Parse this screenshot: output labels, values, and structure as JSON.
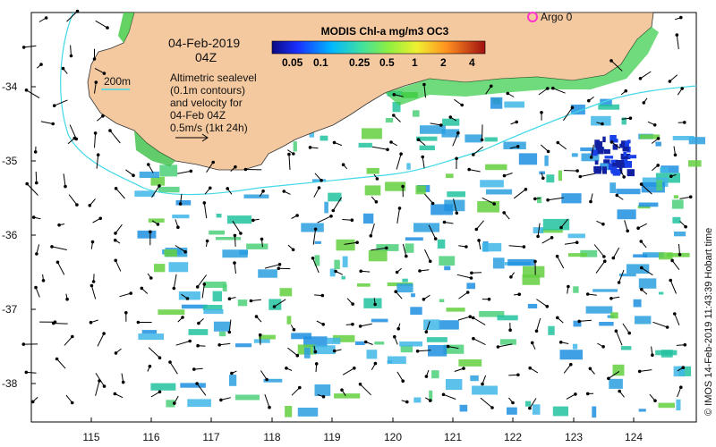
{
  "map": {
    "date_line1": "04-Feb-2019",
    "date_line2": "04Z",
    "contour_label": "200m",
    "legend_lines": [
      "Altimetric sealevel",
      "(0.1m contours)",
      "and velocity for",
      "04-Feb 04Z",
      "0.5m/s (1kt 24h)"
    ],
    "colorbar_title": "MODIS Chl-a mg/m3 OC3",
    "colorbar_ticks": [
      "0.05",
      "0.1",
      "0.25",
      "0.5",
      "1",
      "2",
      "4"
    ],
    "argo_label": "Argo 0",
    "side_credit": "© IMOS 14-Feb-2019 11:43:39 Hobart time",
    "longitude_ticks": [
      "115",
      "116",
      "117",
      "118",
      "119",
      "120",
      "121",
      "122",
      "123",
      "124"
    ],
    "latitude_ticks": [
      "-34",
      "-35",
      "-36",
      "-37",
      "-38"
    ],
    "colors": {
      "land": "#f5c9a0",
      "sea": "#ffffff",
      "contour": "#40d8e8",
      "argo_marker": "#ff33cc",
      "arrow": "#000000"
    }
  }
}
